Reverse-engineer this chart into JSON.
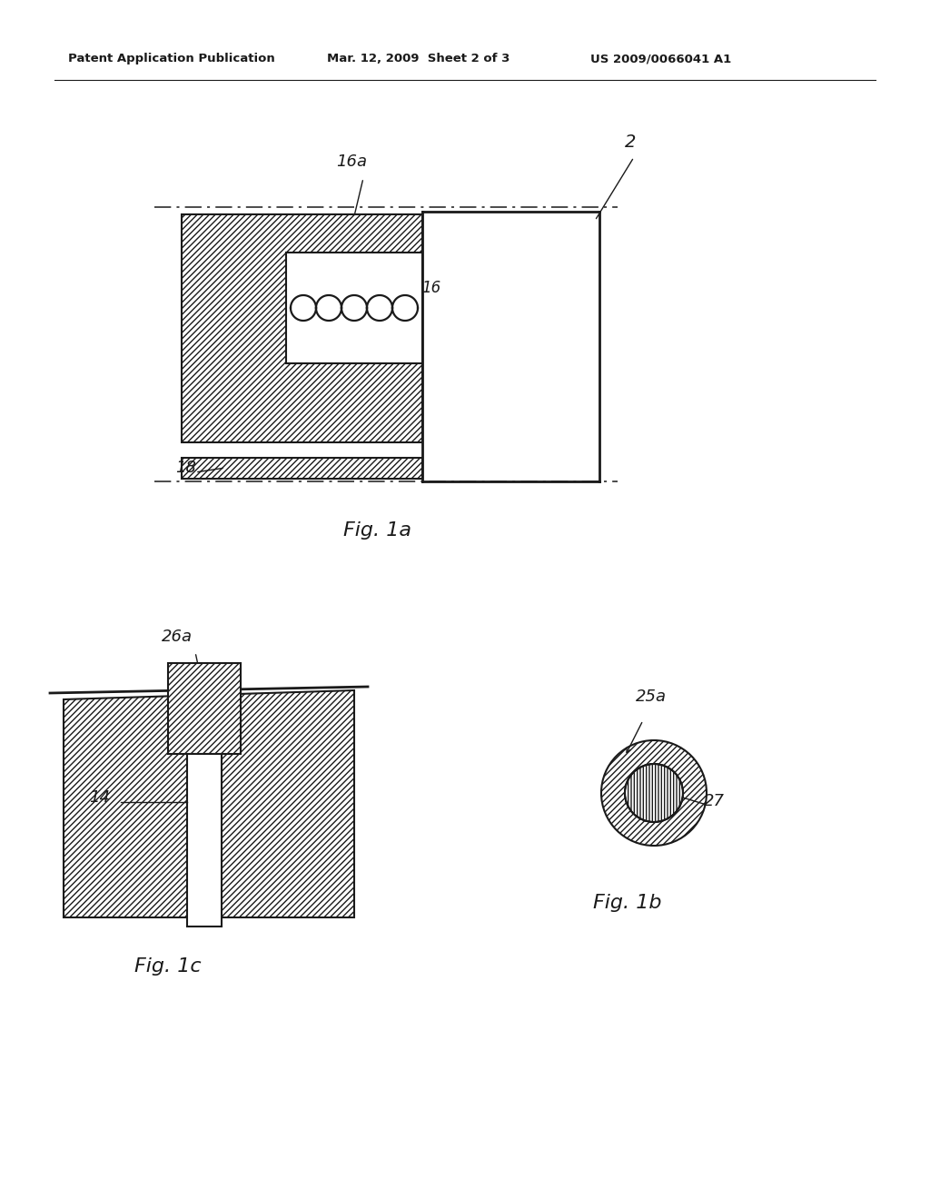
{
  "bg_color": "#ffffff",
  "header_text_left": "Patent Application Publication",
  "header_text_mid": "Mar. 12, 2009  Sheet 2 of 3",
  "header_text_right": "US 2009/0066041 A1",
  "fig1a_label": "Fig. 1a",
  "fig1b_label": "Fig. 1b",
  "fig1c_label": "Fig. 1c",
  "label_2": "2",
  "label_16": "16",
  "label_16a": "16a",
  "label_18": "18",
  "label_14": "14",
  "label_25a": "25a",
  "label_26a": "26a",
  "label_27": "27"
}
